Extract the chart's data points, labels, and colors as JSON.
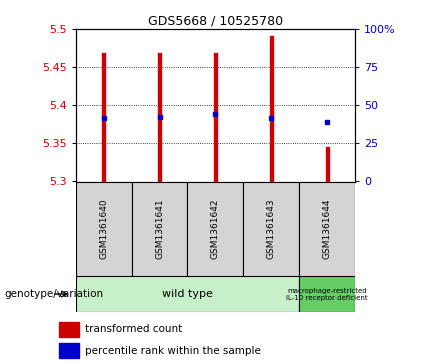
{
  "title": "GDS5668 / 10525780",
  "samples": [
    "GSM1361640",
    "GSM1361641",
    "GSM1361642",
    "GSM1361643",
    "GSM1361644"
  ],
  "bar_low": [
    5.3,
    5.3,
    5.3,
    5.3,
    5.3
  ],
  "bar_high": [
    5.469,
    5.469,
    5.469,
    5.491,
    5.345
  ],
  "blue_y": [
    5.383,
    5.384,
    5.388,
    5.383,
    5.378
  ],
  "ylim": [
    5.3,
    5.5
  ],
  "y_ticks_left": [
    5.3,
    5.35,
    5.4,
    5.45,
    5.5
  ],
  "y_ticks_right": [
    0,
    25,
    50,
    75,
    100
  ],
  "y_right_labels": [
    "0",
    "25",
    "50",
    "75",
    "100%"
  ],
  "bar_color": "#cc0000",
  "blue_color": "#0000cc",
  "group1_label": "wild type",
  "group2_label": "macrophage-restricted\nIL-10 receptor deficient",
  "group1_color": "#c8f0c8",
  "group2_color": "#66cc66",
  "sample_cell_color": "#d4d4d4",
  "genotype_label": "genotype/variation",
  "legend_red": "transformed count",
  "legend_blue": "percentile rank within the sample",
  "bar_width": 0.055
}
